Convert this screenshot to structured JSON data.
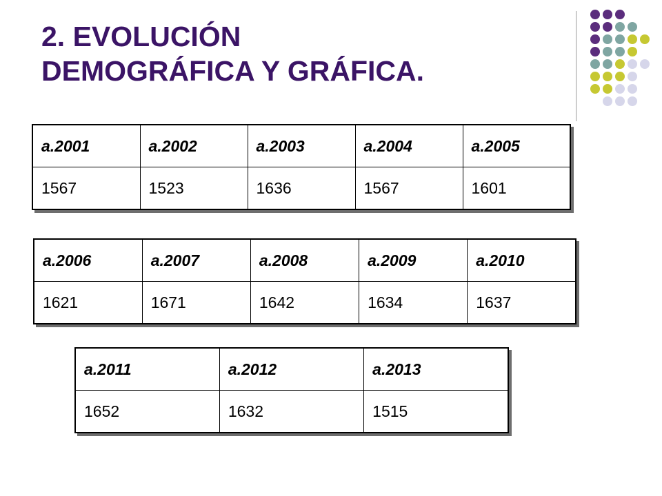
{
  "title": {
    "line1": "2. EVOLUCIÓN",
    "line2": "DEMOGRÁFICA Y GRÁFICA."
  },
  "colors": {
    "title": "#3b1466",
    "dot_purple": "#5b2d7d",
    "dot_teal": "#7fa6a2",
    "dot_olive": "#c6c832",
    "dot_lavender": "#d6d6ea"
  },
  "tables": [
    {
      "headers": [
        "a.2001",
        "a.2002",
        "a.2003",
        "a.2004",
        "a.2005"
      ],
      "values": [
        "1567",
        "1523",
        "1636",
        "1567",
        "1601"
      ]
    },
    {
      "headers": [
        "a.2006",
        "a.2007",
        "a.2008",
        "a.2009",
        "a.2010"
      ],
      "values": [
        "1621",
        "1671",
        "1642",
        "1634",
        "1637"
      ]
    },
    {
      "headers": [
        "a.2011",
        "a.2012",
        "a.2013"
      ],
      "values": [
        "1652",
        "1632",
        "1515"
      ]
    }
  ]
}
